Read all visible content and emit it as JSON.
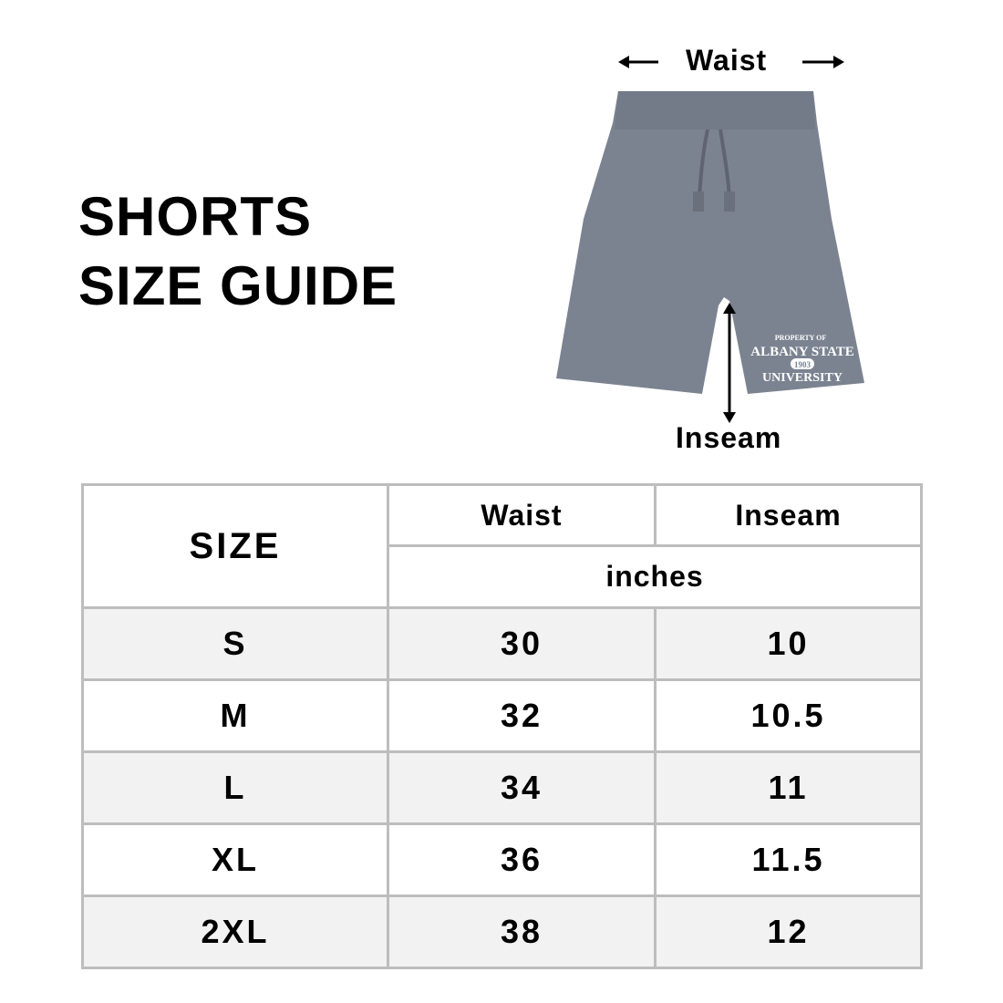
{
  "title": {
    "line1": "SHORTS",
    "line2": "SIZE GUIDE"
  },
  "diagram": {
    "waist_label": "Waist",
    "inseam_label": "Inseam",
    "garment_color": "#7b8391",
    "print": {
      "line1": "PROPERTY OF",
      "line2": "ALBANY STATE",
      "line3": "1903",
      "line4": "UNIVERSITY"
    }
  },
  "table": {
    "size_header": "SIZE",
    "waist_header": "Waist",
    "inseam_header": "Inseam",
    "unit": "inches",
    "rows": [
      {
        "size": "S",
        "waist": "30",
        "inseam": "10"
      },
      {
        "size": "M",
        "waist": "32",
        "inseam": "10.5"
      },
      {
        "size": "L",
        "waist": "34",
        "inseam": "11"
      },
      {
        "size": "XL",
        "waist": "36",
        "inseam": "11.5"
      },
      {
        "size": "2XL",
        "waist": "38",
        "inseam": "12"
      }
    ]
  }
}
